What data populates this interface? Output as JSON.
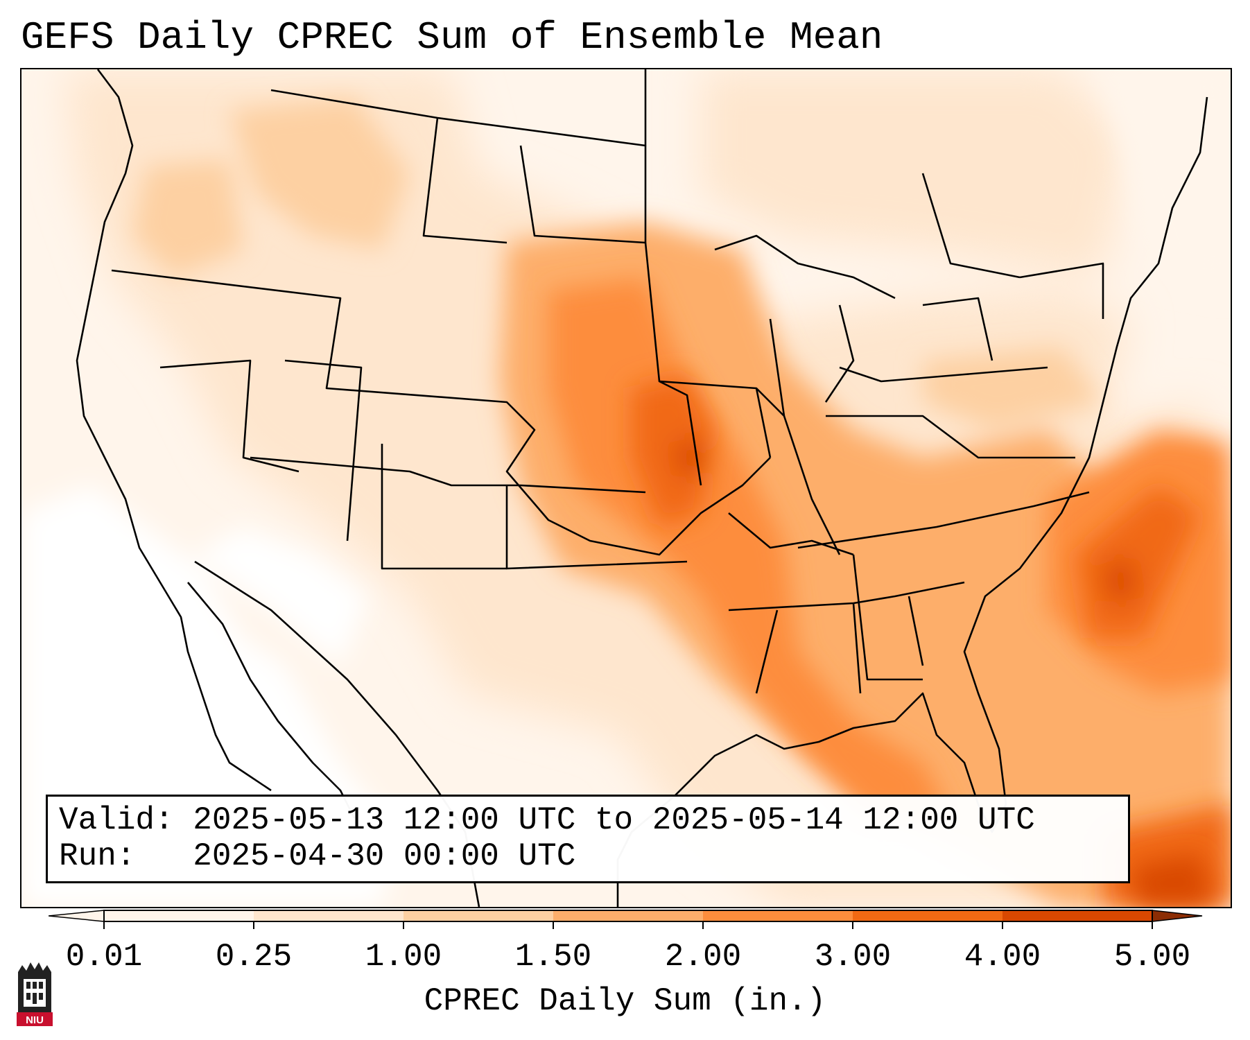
{
  "title": "GEFS Daily CPREC Sum of Ensemble Mean",
  "info": {
    "valid": "Valid: 2025-05-13 12:00 UTC to 2025-05-14 12:00 UTC",
    "run": "Run:   2025-04-30 00:00 UTC"
  },
  "colorbar": {
    "label": "CPREC Daily Sum (in.)",
    "ticks": [
      "0.01",
      "0.25",
      "1.00",
      "1.50",
      "2.00",
      "3.00",
      "4.00",
      "5.00"
    ],
    "colors": [
      "#fff5eb",
      "#fee6ce",
      "#fdd0a2",
      "#fdae6b",
      "#fd8d3c",
      "#f16913",
      "#d94801",
      "#8c2d04"
    ],
    "extend": "both"
  },
  "logo": {
    "name": "NIU",
    "text": "NIU"
  },
  "colors": {
    "border": "#000000",
    "background": "#ffffff"
  }
}
